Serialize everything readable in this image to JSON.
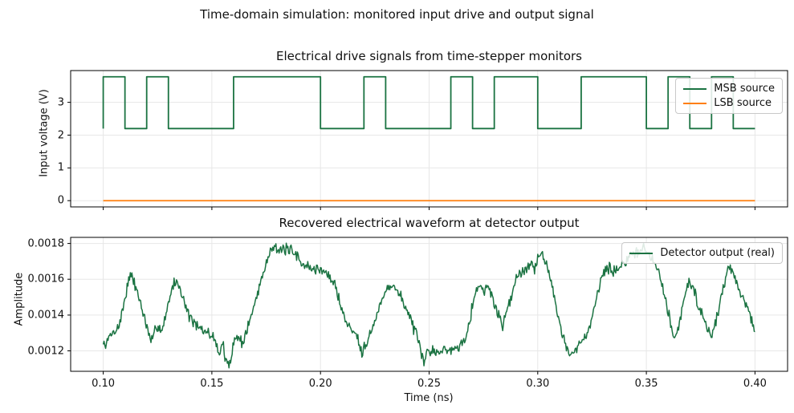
{
  "figure": {
    "suptitle": "Time-domain simulation: monitored input drive and output signal",
    "background": "#ffffff",
    "frame_color": "#000000",
    "grid_color": "#e7e7e7",
    "text_color": "#111111"
  },
  "chart_data": [
    {
      "type": "line",
      "title": "Electrical drive signals from time-stepper monitors",
      "xlabel": "",
      "ylabel": "Input voltage (V)",
      "xlim": [
        0.085,
        0.415
      ],
      "ylim": [
        -0.19,
        3.97
      ],
      "xticks": [
        0.1,
        0.15,
        0.2,
        0.25,
        0.3,
        0.35,
        0.4
      ],
      "xticklabels": [],
      "yticks": [
        0,
        1,
        2,
        3
      ],
      "yticklabels": [
        "0",
        "1",
        "2",
        "3"
      ],
      "grid": true,
      "legend_position": "upper right",
      "series": [
        {
          "name": "MSB source",
          "color": "#1b7342",
          "kind": "digital-step",
          "t_start": 0.1,
          "bit_period": 0.01,
          "bits": [
            1,
            0,
            1,
            0,
            0,
            0,
            1,
            1,
            1,
            1,
            0,
            0,
            1,
            0,
            0,
            0,
            1,
            0,
            1,
            1,
            0,
            0,
            1,
            1,
            1,
            0,
            1,
            0,
            1,
            0
          ],
          "low_level": 2.2,
          "high_level": 3.78,
          "line_width": 1.8
        },
        {
          "name": "LSB source",
          "color": "#ff7f0e",
          "kind": "constant",
          "t_start": 0.1,
          "t_end": 0.4,
          "value": 0.0,
          "line_width": 1.8
        }
      ]
    },
    {
      "type": "line",
      "title": "Recovered electrical waveform at detector output",
      "xlabel": "Time (ns)",
      "ylabel": "Amplitude",
      "xlim": [
        0.085,
        0.415
      ],
      "ylim": [
        0.001086,
        0.001834
      ],
      "xticks": [
        0.1,
        0.15,
        0.2,
        0.25,
        0.3,
        0.35,
        0.4
      ],
      "xticklabels": [
        "0.10",
        "0.15",
        "0.20",
        "0.25",
        "0.30",
        "0.35",
        "0.40"
      ],
      "yticks": [
        0.0012,
        0.0014,
        0.0016,
        0.0018
      ],
      "yticklabels": [
        "0.0012",
        "0.0014",
        "0.0016",
        "0.0018"
      ],
      "grid": true,
      "legend_position": "upper right",
      "series": [
        {
          "name": "Detector output (real)",
          "color": "#1b7342",
          "kind": "noisy-envelope",
          "t_start": 0.1,
          "t_end": 0.4,
          "noise_amplitude": 2e-05,
          "line_width": 1.5,
          "envelope": [
            [
              0.1,
              0.00123
            ],
            [
              0.1015,
              0.00124
            ],
            [
              0.103,
              0.00128
            ],
            [
              0.105,
              0.00131
            ],
            [
              0.107,
              0.00133
            ],
            [
              0.109,
              0.00143
            ],
            [
              0.111,
              0.00156
            ],
            [
              0.1125,
              0.00162
            ],
            [
              0.114,
              0.00159
            ],
            [
              0.116,
              0.00152
            ],
            [
              0.118,
              0.00143
            ],
            [
              0.12,
              0.00133
            ],
            [
              0.1215,
              0.00127
            ],
            [
              0.122,
              0.00124
            ],
            [
              0.1235,
              0.0013
            ],
            [
              0.125,
              0.00135
            ],
            [
              0.1265,
              0.00131
            ],
            [
              0.128,
              0.00136
            ],
            [
              0.13,
              0.00147
            ],
            [
              0.1315,
              0.00154
            ],
            [
              0.133,
              0.00159
            ],
            [
              0.135,
              0.00156
            ],
            [
              0.137,
              0.00149
            ],
            [
              0.139,
              0.00141
            ],
            [
              0.141,
              0.00137
            ],
            [
              0.1435,
              0.00133
            ],
            [
              0.146,
              0.00131
            ],
            [
              0.1485,
              0.0013
            ],
            [
              0.151,
              0.00127
            ],
            [
              0.1525,
              0.00123
            ],
            [
              0.1535,
              0.00117
            ],
            [
              0.1548,
              0.00126
            ],
            [
              0.1565,
              0.00113
            ],
            [
              0.1583,
              0.00112
            ],
            [
              0.16,
              0.00126
            ],
            [
              0.1625,
              0.00128
            ],
            [
              0.164,
              0.00124
            ],
            [
              0.1665,
              0.00133
            ],
            [
              0.169,
              0.00143
            ],
            [
              0.172,
              0.00157
            ],
            [
              0.175,
              0.00169
            ],
            [
              0.178,
              0.0018
            ],
            [
              0.18,
              0.00177
            ],
            [
              0.182,
              0.00175
            ],
            [
              0.184,
              0.00177
            ],
            [
              0.186,
              0.00176
            ],
            [
              0.188,
              0.00174
            ],
            [
              0.19,
              0.00172
            ],
            [
              0.1925,
              0.00168
            ],
            [
              0.195,
              0.00166
            ],
            [
              0.1975,
              0.00166
            ],
            [
              0.2,
              0.00165
            ],
            [
              0.2025,
              0.00164
            ],
            [
              0.205,
              0.0016
            ],
            [
              0.207,
              0.00155
            ],
            [
              0.209,
              0.00148
            ],
            [
              0.211,
              0.00138
            ],
            [
              0.213,
              0.00134
            ],
            [
              0.215,
              0.00131
            ],
            [
              0.217,
              0.00129
            ],
            [
              0.219,
              0.00119
            ],
            [
              0.2205,
              0.00124
            ],
            [
              0.222,
              0.00127
            ],
            [
              0.224,
              0.00133
            ],
            [
              0.226,
              0.0014
            ],
            [
              0.2285,
              0.00149
            ],
            [
              0.231,
              0.00156
            ],
            [
              0.2335,
              0.00157
            ],
            [
              0.236,
              0.00152
            ],
            [
              0.238,
              0.00148
            ],
            [
              0.24,
              0.00142
            ],
            [
              0.242,
              0.00136
            ],
            [
              0.244,
              0.00129
            ],
            [
              0.246,
              0.0012
            ],
            [
              0.2475,
              0.00113
            ],
            [
              0.249,
              0.00119
            ],
            [
              0.251,
              0.00121
            ],
            [
              0.253,
              0.0012
            ],
            [
              0.255,
              0.00119
            ],
            [
              0.257,
              0.00121
            ],
            [
              0.259,
              0.0012
            ],
            [
              0.261,
              0.00122
            ],
            [
              0.263,
              0.00121
            ],
            [
              0.265,
              0.00125
            ],
            [
              0.267,
              0.00129
            ],
            [
              0.2685,
              0.00136
            ],
            [
              0.27,
              0.00146
            ],
            [
              0.272,
              0.00155
            ],
            [
              0.2735,
              0.00157
            ],
            [
              0.275,
              0.00153
            ],
            [
              0.2765,
              0.00156
            ],
            [
              0.278,
              0.00153
            ],
            [
              0.28,
              0.00147
            ],
            [
              0.282,
              0.0014
            ],
            [
              0.284,
              0.00134
            ],
            [
              0.286,
              0.00143
            ],
            [
              0.288,
              0.00152
            ],
            [
              0.29,
              0.0016
            ],
            [
              0.292,
              0.00164
            ],
            [
              0.294,
              0.00166
            ],
            [
              0.296,
              0.00167
            ],
            [
              0.2975,
              0.0017
            ],
            [
              0.2985,
              0.00166
            ],
            [
              0.3,
              0.00173
            ],
            [
              0.3015,
              0.00175
            ],
            [
              0.303,
              0.00171
            ],
            [
              0.305,
              0.00164
            ],
            [
              0.307,
              0.00155
            ],
            [
              0.309,
              0.00143
            ],
            [
              0.311,
              0.0013
            ],
            [
              0.313,
              0.00123
            ],
            [
              0.3145,
              0.00117
            ],
            [
              0.316,
              0.00118
            ],
            [
              0.3175,
              0.0012
            ],
            [
              0.319,
              0.00123
            ],
            [
              0.321,
              0.00126
            ],
            [
              0.323,
              0.0013
            ],
            [
              0.325,
              0.00139
            ],
            [
              0.327,
              0.0015
            ],
            [
              0.329,
              0.0016
            ],
            [
              0.331,
              0.00165
            ],
            [
              0.333,
              0.00167
            ],
            [
              0.335,
              0.00164
            ],
            [
              0.337,
              0.00166
            ],
            [
              0.339,
              0.00168
            ],
            [
              0.341,
              0.00171
            ],
            [
              0.343,
              0.00172
            ],
            [
              0.345,
              0.00174
            ],
            [
              0.347,
              0.00177
            ],
            [
              0.3485,
              0.00178
            ],
            [
              0.35,
              0.00175
            ],
            [
              0.352,
              0.00172
            ],
            [
              0.354,
              0.0017
            ],
            [
              0.356,
              0.00163
            ],
            [
              0.358,
              0.00152
            ],
            [
              0.36,
              0.00143
            ],
            [
              0.3615,
              0.00133
            ],
            [
              0.3625,
              0.00127
            ],
            [
              0.364,
              0.00131
            ],
            [
              0.366,
              0.0014
            ],
            [
              0.368,
              0.00153
            ],
            [
              0.3695,
              0.00159
            ],
            [
              0.371,
              0.00156
            ],
            [
              0.3725,
              0.00152
            ],
            [
              0.374,
              0.00145
            ],
            [
              0.376,
              0.00139
            ],
            [
              0.378,
              0.00134
            ],
            [
              0.38,
              0.00128
            ],
            [
              0.382,
              0.00136
            ],
            [
              0.384,
              0.00147
            ],
            [
              0.386,
              0.00159
            ],
            [
              0.388,
              0.00168
            ],
            [
              0.3895,
              0.00163
            ],
            [
              0.391,
              0.00161
            ],
            [
              0.3925,
              0.00155
            ],
            [
              0.394,
              0.00152
            ],
            [
              0.396,
              0.00145
            ],
            [
              0.398,
              0.00139
            ],
            [
              0.4,
              0.0013
            ]
          ]
        }
      ]
    }
  ]
}
